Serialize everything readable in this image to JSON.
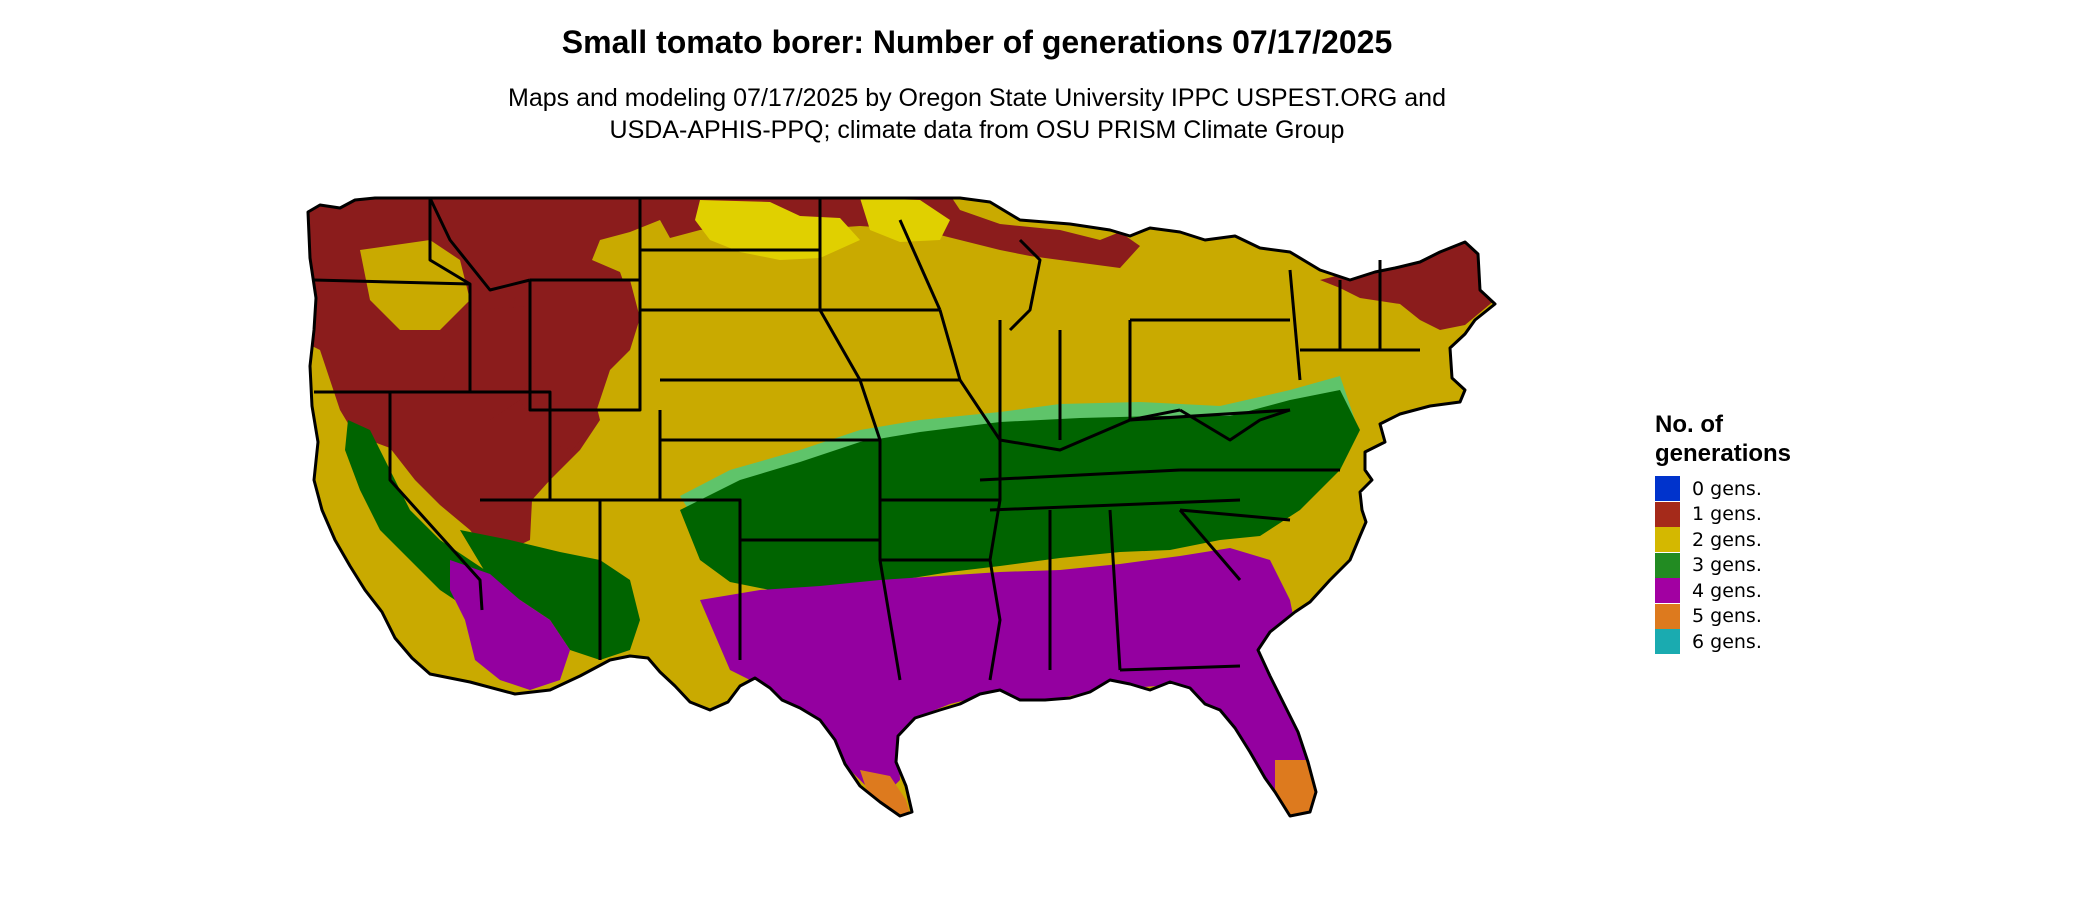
{
  "title": "Small tomato borer: Number of generations 07/17/2025",
  "subtitle_line1": "Maps and modeling 07/17/2025 by Oregon State University IPPC USPEST.ORG and",
  "subtitle_line2": "USDA-APHIS-PPQ; climate data from OSU PRISM Climate Group",
  "legend": {
    "title_line1": "No. of",
    "title_line2": "generations",
    "items": [
      {
        "label": "0 gens.",
        "color": "#0033cc"
      },
      {
        "label": "1 gens.",
        "color": "#a52a1a"
      },
      {
        "label": "2 gens.",
        "color": "#d4b800"
      },
      {
        "label": "3 gens.",
        "color": "#228b22"
      },
      {
        "label": "4 gens.",
        "color": "#a200a2"
      },
      {
        "label": "5 gens.",
        "color": "#dd7a1e"
      },
      {
        "label": "6 gens.",
        "color": "#1aabb0"
      }
    ]
  },
  "map_colors": {
    "one_gen": "#8b1c1c",
    "two_gen": "#c9aa00",
    "two_gen_light": "#e0d000",
    "three_gen": "#006400",
    "three_gen_light": "#5fc46a",
    "four_gen": "#9400a0",
    "five_gen": "#dd7a1e",
    "border": "#000000"
  }
}
